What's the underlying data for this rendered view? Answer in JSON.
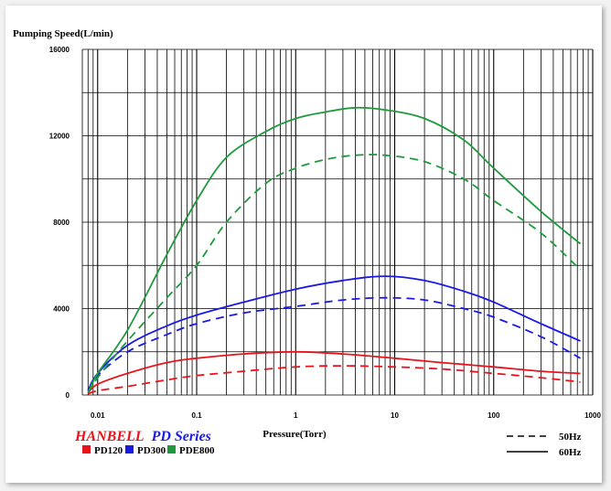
{
  "chart_data": {
    "type": "line",
    "ylabel": "Pumping Speed(L/min)",
    "xlabel": "Pressure(Torr)",
    "x_scale": "log",
    "xlim": [
      0.007,
      1000
    ],
    "ylim": [
      0,
      16000
    ],
    "x_tick_labels": [
      "0.01",
      "0.1",
      "1",
      "10",
      "100",
      "1000"
    ],
    "x_tick_values": [
      0.01,
      0.1,
      1,
      10,
      100,
      1000
    ],
    "y_tick_labels": [
      "0",
      "4000",
      "8000",
      "12000",
      "16000"
    ],
    "y_tick_values": [
      0,
      4000,
      8000,
      12000,
      16000
    ],
    "grid": true,
    "brand": {
      "part1": "HANBELL",
      "part2": "PD Series"
    },
    "models": [
      {
        "name": "PD120",
        "color": "#e8141c"
      },
      {
        "name": "PD300",
        "color": "#1a1ae6"
      },
      {
        "name": "PDE800",
        "color": "#1e9a3c"
      }
    ],
    "line_styles": [
      {
        "label": "50Hz",
        "style": "dashed"
      },
      {
        "label": "60Hz",
        "style": "solid"
      }
    ],
    "series": [
      {
        "model": "PD120",
        "freq": "60Hz",
        "color": "#e8141c",
        "x": [
          0.008,
          0.01,
          0.02,
          0.05,
          0.1,
          0.3,
          1,
          3,
          10,
          30,
          100,
          300,
          750
        ],
        "y": [
          100,
          500,
          1000,
          1500,
          1700,
          1900,
          2000,
          1900,
          1700,
          1500,
          1300,
          1100,
          1000
        ]
      },
      {
        "model": "PD120",
        "freq": "50Hz",
        "color": "#e8141c",
        "x": [
          0.008,
          0.01,
          0.02,
          0.05,
          0.1,
          0.3,
          1,
          3,
          10,
          30,
          100,
          300,
          750
        ],
        "y": [
          50,
          200,
          400,
          700,
          900,
          1100,
          1300,
          1350,
          1300,
          1200,
          1000,
          800,
          600
        ]
      },
      {
        "model": "PD300",
        "freq": "60Hz",
        "color": "#1a1ae6",
        "x": [
          0.008,
          0.01,
          0.02,
          0.05,
          0.1,
          0.3,
          1,
          3,
          8,
          20,
          50,
          100,
          300,
          750
        ],
        "y": [
          200,
          1000,
          2300,
          3200,
          3700,
          4300,
          4900,
          5300,
          5500,
          5300,
          4800,
          4300,
          3300,
          2500
        ]
      },
      {
        "model": "PD300",
        "freq": "50Hz",
        "color": "#1a1ae6",
        "x": [
          0.008,
          0.01,
          0.02,
          0.05,
          0.1,
          0.3,
          1,
          3,
          8,
          20,
          50,
          100,
          300,
          750
        ],
        "y": [
          200,
          900,
          2000,
          2800,
          3300,
          3800,
          4100,
          4400,
          4500,
          4400,
          4000,
          3600,
          2700,
          1700
        ]
      },
      {
        "model": "PDE800",
        "freq": "60Hz",
        "color": "#1e9a3c",
        "x": [
          0.008,
          0.01,
          0.02,
          0.05,
          0.1,
          0.2,
          0.5,
          1,
          2,
          4,
          8,
          20,
          50,
          100,
          300,
          750
        ],
        "y": [
          100,
          1000,
          3000,
          6500,
          9000,
          11000,
          12200,
          12800,
          13100,
          13300,
          13200,
          12800,
          11800,
          10500,
          8500,
          7000
        ]
      },
      {
        "model": "PDE800",
        "freq": "50Hz",
        "color": "#1e9a3c",
        "x": [
          0.008,
          0.01,
          0.02,
          0.05,
          0.1,
          0.2,
          0.5,
          1,
          2,
          4,
          8,
          20,
          50,
          100,
          300,
          750
        ],
        "y": [
          100,
          800,
          2500,
          4500,
          6000,
          8000,
          9800,
          10500,
          10900,
          11100,
          11100,
          10800,
          10000,
          9000,
          7500,
          5800
        ]
      }
    ]
  }
}
